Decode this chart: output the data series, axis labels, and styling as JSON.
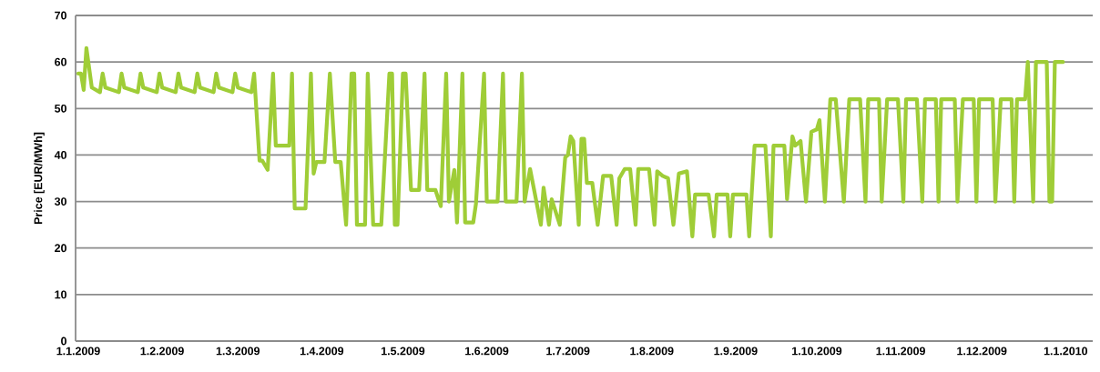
{
  "chart_data": {
    "type": "line",
    "ylabel": "Price [EUR/MWh]",
    "xlim": [
      "2008-12-31",
      "2010-01-11"
    ],
    "xticks": [
      {
        "value": "2009-01-01",
        "label": "1.1.2009"
      },
      {
        "value": "2009-02-01",
        "label": "1.2.2009"
      },
      {
        "value": "2009-03-01",
        "label": "1.3.2009"
      },
      {
        "value": "2009-04-01",
        "label": "1.4.2009"
      },
      {
        "value": "2009-05-01",
        "label": "1.5.2009"
      },
      {
        "value": "2009-06-01",
        "label": "1.6.2009"
      },
      {
        "value": "2009-07-01",
        "label": "1.7.2009"
      },
      {
        "value": "2009-08-01",
        "label": "1.8.2009"
      },
      {
        "value": "2009-09-01",
        "label": "1.9.2009"
      },
      {
        "value": "2009-10-01",
        "label": "1.10.2009"
      },
      {
        "value": "2009-11-01",
        "label": "1.11.2009"
      },
      {
        "value": "2009-12-01",
        "label": "1.12.2009"
      },
      {
        "value": "2010-01-01",
        "label": "1.1.2010"
      }
    ],
    "ylim": [
      0,
      70
    ],
    "yticks": [
      0,
      10,
      20,
      30,
      40,
      50,
      60,
      70
    ],
    "grid": "y",
    "marker": "none",
    "line_style": "solid",
    "x": [
      "2009-01-01",
      "2009-01-02",
      "2009-01-03",
      "2009-01-04",
      "2009-01-06",
      "2009-01-09",
      "2009-01-10",
      "2009-01-11",
      "2009-01-16",
      "2009-01-17",
      "2009-01-18",
      "2009-01-23",
      "2009-01-24",
      "2009-01-25",
      "2009-01-30",
      "2009-01-31",
      "2009-02-01",
      "2009-02-06",
      "2009-02-07",
      "2009-02-08",
      "2009-02-13",
      "2009-02-14",
      "2009-02-15",
      "2009-02-20",
      "2009-02-21",
      "2009-02-22",
      "2009-02-27",
      "2009-02-28",
      "2009-03-01",
      "2009-03-06",
      "2009-03-07",
      "2009-03-09",
      "2009-03-10",
      "2009-03-12",
      "2009-03-14",
      "2009-03-15",
      "2009-03-20",
      "2009-03-21",
      "2009-03-22",
      "2009-03-26",
      "2009-03-28",
      "2009-03-29",
      "2009-03-30",
      "2009-04-02",
      "2009-04-04",
      "2009-04-06",
      "2009-04-08",
      "2009-04-10",
      "2009-04-12",
      "2009-04-13",
      "2009-04-14",
      "2009-04-17",
      "2009-04-18",
      "2009-04-20",
      "2009-04-23",
      "2009-04-26",
      "2009-04-27",
      "2009-04-28",
      "2009-04-29",
      "2009-05-01",
      "2009-05-02",
      "2009-05-04",
      "2009-05-07",
      "2009-05-09",
      "2009-05-10",
      "2009-05-13",
      "2009-05-15",
      "2009-05-17",
      "2009-05-18",
      "2009-05-20",
      "2009-05-21",
      "2009-05-23",
      "2009-05-24",
      "2009-05-27",
      "2009-05-28",
      "2009-05-31",
      "2009-06-01",
      "2009-06-05",
      "2009-06-07",
      "2009-06-08",
      "2009-06-12",
      "2009-06-14",
      "2009-06-15",
      "2009-06-17",
      "2009-06-21",
      "2009-06-22",
      "2009-06-24",
      "2009-06-25",
      "2009-06-28",
      "2009-06-30",
      "2009-07-01",
      "2009-07-02",
      "2009-07-03",
      "2009-07-05",
      "2009-07-06",
      "2009-07-07",
      "2009-07-08",
      "2009-07-10",
      "2009-07-12",
      "2009-07-14",
      "2009-07-17",
      "2009-07-19",
      "2009-07-20",
      "2009-07-22",
      "2009-07-24",
      "2009-07-26",
      "2009-07-27",
      "2009-07-31",
      "2009-08-02",
      "2009-08-03",
      "2009-08-05",
      "2009-08-07",
      "2009-08-09",
      "2009-08-11",
      "2009-08-14",
      "2009-08-16",
      "2009-08-17",
      "2009-08-22",
      "2009-08-24",
      "2009-08-25",
      "2009-08-29",
      "2009-08-30",
      "2009-08-31",
      "2009-09-05",
      "2009-09-06",
      "2009-09-08",
      "2009-09-12",
      "2009-09-14",
      "2009-09-15",
      "2009-09-19",
      "2009-09-20",
      "2009-09-22",
      "2009-09-23",
      "2009-09-25",
      "2009-09-27",
      "2009-09-29",
      "2009-10-01",
      "2009-10-02",
      "2009-10-04",
      "2009-10-06",
      "2009-10-08",
      "2009-10-11",
      "2009-10-13",
      "2009-10-17",
      "2009-10-19",
      "2009-10-20",
      "2009-10-24",
      "2009-10-25",
      "2009-10-27",
      "2009-10-31",
      "2009-11-02",
      "2009-11-03",
      "2009-11-07",
      "2009-11-09",
      "2009-11-10",
      "2009-11-14",
      "2009-11-15",
      "2009-11-16",
      "2009-11-21",
      "2009-11-22",
      "2009-11-24",
      "2009-11-28",
      "2009-11-29",
      "2009-11-30",
      "2009-12-05",
      "2009-12-06",
      "2009-12-08",
      "2009-12-12",
      "2009-12-13",
      "2009-12-14",
      "2009-12-17",
      "2009-12-18",
      "2009-12-20",
      "2009-12-21",
      "2009-12-25",
      "2009-12-26",
      "2009-12-27",
      "2009-12-28",
      "2009-12-31"
    ],
    "series": [
      {
        "color": "#9fcd37",
        "values": [
          57.5,
          57.5,
          54,
          63,
          54.5,
          53.5,
          57.5,
          54.5,
          53.5,
          57.5,
          54.5,
          53.5,
          57.5,
          54.5,
          53.5,
          57.5,
          54.5,
          53.5,
          57.5,
          54.5,
          53.5,
          57.5,
          54.5,
          53.5,
          57.5,
          54.5,
          53.5,
          57.5,
          54.5,
          53.5,
          57.5,
          38.8,
          38.8,
          36.8,
          57.5,
          42,
          42,
          57.5,
          28.5,
          28.5,
          57.5,
          36,
          38.5,
          38.5,
          57.5,
          38.5,
          38.5,
          25,
          57.5,
          57.5,
          25,
          25,
          57.5,
          25,
          25,
          57.5,
          57.5,
          25,
          25,
          57.5,
          57.5,
          32.5,
          32.5,
          57.5,
          32.5,
          32.5,
          29,
          57.5,
          30,
          36.8,
          25.5,
          57.5,
          25.5,
          25.5,
          29.5,
          57.5,
          30,
          30,
          57.5,
          30,
          30,
          57.5,
          30,
          37,
          25,
          33,
          25,
          30.5,
          25,
          39.5,
          40,
          44,
          43,
          25,
          43.5,
          43.5,
          34,
          34,
          25,
          35.5,
          35.5,
          25,
          35,
          37,
          37,
          25,
          37,
          37,
          25,
          36.5,
          35.5,
          35,
          25,
          36,
          36.5,
          22.5,
          31.5,
          31.5,
          22.5,
          31.5,
          31.5,
          22.5,
          31.5,
          31.5,
          22.5,
          42,
          42,
          22.5,
          42,
          42,
          30.5,
          44,
          42,
          43,
          30,
          45,
          45.5,
          47.5,
          30,
          52,
          52,
          30,
          52,
          52,
          30,
          52,
          52,
          30,
          52,
          52,
          30,
          52,
          52,
          30,
          52,
          52,
          30,
          52,
          52,
          30,
          52,
          52,
          30,
          52,
          52,
          30,
          52,
          52,
          30,
          52,
          52,
          60,
          30,
          60,
          60,
          30,
          30,
          60,
          60
        ]
      }
    ]
  }
}
